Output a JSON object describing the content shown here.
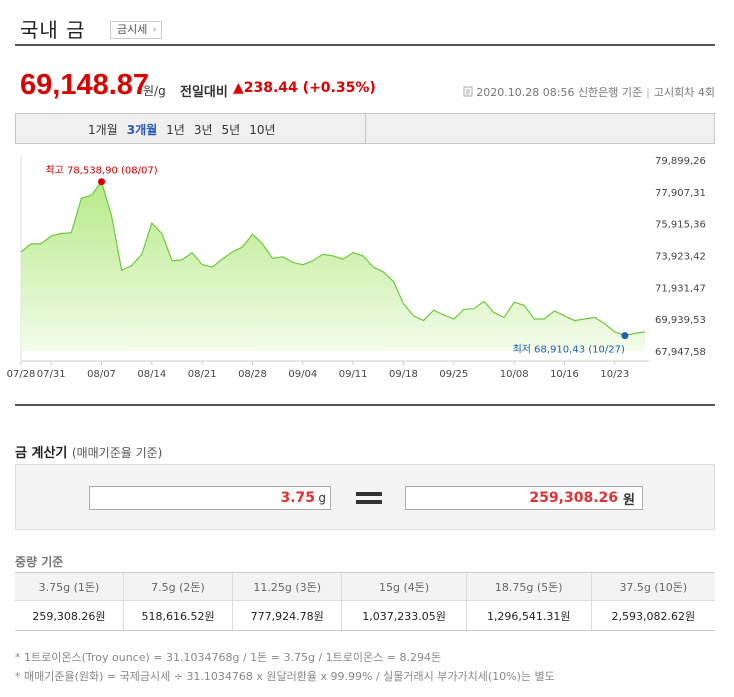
{
  "header": {
    "title": "국내 금",
    "badge": "금시세",
    "badge_arrow": "›"
  },
  "price": {
    "value": "69,148.87",
    "unit": "원/g",
    "change_label": "전일대비",
    "change": "▲238.44 (+0.35%)",
    "basis_icon": "document-icon",
    "basis": "2020.10.28 08:56 신한은행 기준",
    "basis_sep": "|",
    "round": "고시회차 4회",
    "colors": {
      "up": "#dd0000",
      "accent": "#2a57b8"
    }
  },
  "period_tabs": [
    {
      "label": "1개월",
      "active": false
    },
    {
      "label": "3개월",
      "active": true
    },
    {
      "label": "1년",
      "active": false
    },
    {
      "label": "3년",
      "active": false
    },
    {
      "label": "5년",
      "active": false
    },
    {
      "label": "10년",
      "active": false
    }
  ],
  "chart_data": {
    "type": "area",
    "ylim": [
      67947.58,
      79899.26
    ],
    "y_ticks": [
      "79,899,26",
      "77,907,31",
      "75,915,36",
      "73,923,42",
      "71,931,47",
      "69,939,53",
      "67,947,58"
    ],
    "y_tick_values": [
      79899.26,
      77907.31,
      75915.36,
      73923.42,
      71931.47,
      69939.53,
      67947.58
    ],
    "x_ticks": [
      {
        "label": "07/28",
        "i": 0
      },
      {
        "label": "07/31",
        "i": 3
      },
      {
        "label": "08/07",
        "i": 8
      },
      {
        "label": "08/14",
        "i": 13
      },
      {
        "label": "08/21",
        "i": 18
      },
      {
        "label": "08/28",
        "i": 23
      },
      {
        "label": "09/04",
        "i": 28
      },
      {
        "label": "09/11",
        "i": 33
      },
      {
        "label": "09/18",
        "i": 38
      },
      {
        "label": "09/25",
        "i": 43
      },
      {
        "label": "10/08",
        "i": 49
      },
      {
        "label": "10/16",
        "i": 54
      },
      {
        "label": "10/23",
        "i": 59
      }
    ],
    "values": [
      74150,
      74650,
      74650,
      75150,
      75300,
      75350,
      77500,
      77700,
      78538.9,
      76400,
      73000,
      73300,
      74000,
      75950,
      75300,
      73600,
      73650,
      74100,
      73350,
      73200,
      73700,
      74150,
      74450,
      75250,
      74650,
      73750,
      73850,
      73500,
      73350,
      73600,
      74000,
      73900,
      73700,
      74100,
      73900,
      73200,
      72900,
      72300,
      70900,
      70150,
      69850,
      70500,
      70200,
      69950,
      70550,
      70600,
      71050,
      70350,
      70050,
      71000,
      70800,
      69950,
      69950,
      70450,
      70150,
      69850,
      69950,
      70050,
      69650,
      69150,
      68910.43,
      69050,
      69150
    ],
    "max": {
      "label": "최고 78,538,90 (08/07)",
      "i": 8,
      "value": 78538.9
    },
    "min": {
      "label": "최저 68,910,43 (10/27)",
      "i": 60,
      "value": 68910.43
    },
    "colors": {
      "line": "#6fc83f",
      "fill_top": "#b6ea86",
      "fill_bottom": "#f3fcea",
      "max_dot": "#d00000",
      "min_dot": "#2060b0"
    }
  },
  "calculator": {
    "title": "금 계산기",
    "subtitle": "(매매기준율 기준)",
    "weight_value": "3.75",
    "weight_unit": "g",
    "result_value": "259,308.26",
    "result_unit": "원"
  },
  "weight_table": {
    "title": "중량 기준",
    "headers": [
      "3.75g (1돈)",
      "7.5g (2돈)",
      "11.25g (3돈)",
      "15g (4돈)",
      "18.75g (5돈)",
      "37.5g (10돈)"
    ],
    "values": [
      "259,308.26원",
      "518,616.52원",
      "777,924.78원",
      "1,037,233.05원",
      "1,296,541.31원",
      "2,593,082.62원"
    ]
  },
  "notes": [
    "* 1트로이온스(Troy ounce) = 31.1034768g / 1돈 = 3.75g / 1트로이온스 = 8.294돈",
    "* 매매기준율(원화) = 국제금시세 ÷ 31.1034768 x 원달러환율 x 99.99% / 실물거래시 부가가치세(10%)는 별도"
  ]
}
